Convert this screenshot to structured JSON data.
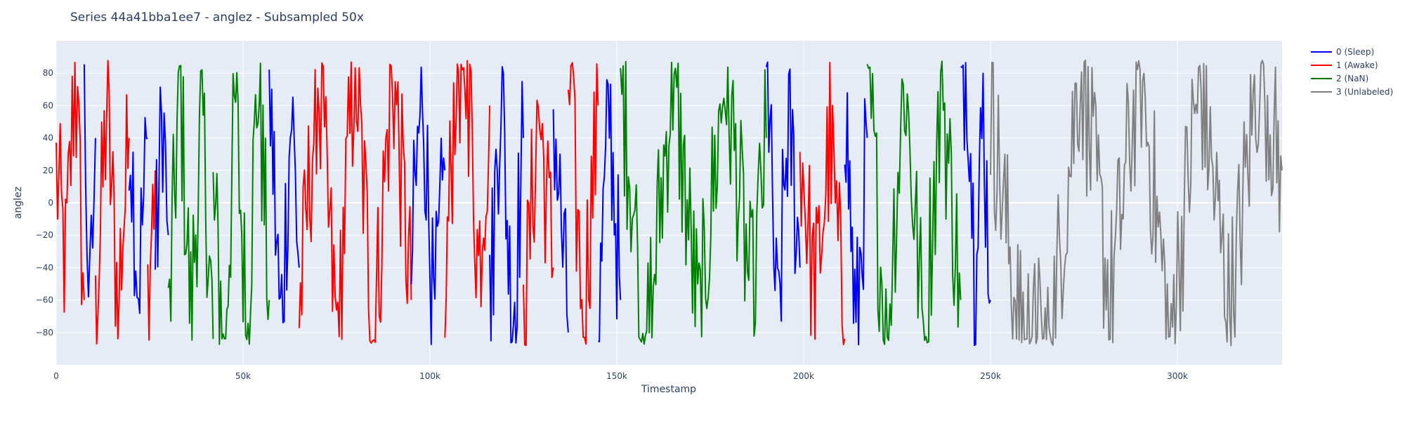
{
  "chart_data": {
    "type": "line",
    "title": "Series 44a41bba1ee7 - anglez - Subsampled 50x",
    "xlabel": "Timestamp",
    "ylabel": "anglez",
    "xlim": [
      0,
      328000
    ],
    "ylim": [
      -100,
      100
    ],
    "x_ticks": [
      0,
      50000,
      100000,
      150000,
      200000,
      250000,
      300000
    ],
    "x_tick_labels": [
      "0",
      "50k",
      "100k",
      "150k",
      "200k",
      "250k",
      "300k"
    ],
    "y_ticks": [
      -80,
      -60,
      -40,
      -20,
      0,
      20,
      40,
      60,
      80
    ],
    "y_tick_labels": [
      "−80",
      "−60",
      "−40",
      "−20",
      "0",
      "20",
      "40",
      "60",
      "80"
    ],
    "grid": true,
    "legend_position": "top-right",
    "plot_bg_color": "#e5ecf6",
    "legend": [
      {
        "name": "0 (Sleep)",
        "color": "#0000ff"
      },
      {
        "name": "1 (Awake)",
        "color": "#ff0000"
      },
      {
        "name": "2 (NaN)",
        "color": "#008000"
      },
      {
        "name": "3 (Unlabeled)",
        "color": "#808080"
      }
    ],
    "segments": [
      {
        "class": 1,
        "x": [
          0,
          2500,
          5000,
          7500
        ],
        "y": [
          20,
          -40,
          80,
          -60
        ]
      },
      {
        "class": 0,
        "x": [
          7500,
          9000,
          10500
        ],
        "y": [
          60,
          -78,
          40
        ]
      },
      {
        "class": 1,
        "x": [
          10500,
          13500,
          16500,
          19500
        ],
        "y": [
          -80,
          60,
          -60,
          40
        ]
      },
      {
        "class": 0,
        "x": [
          19500,
          22000,
          24500
        ],
        "y": [
          60,
          -50,
          40
        ]
      },
      {
        "class": 1,
        "x": [
          24500,
          26500
        ],
        "y": [
          -60,
          20
        ]
      },
      {
        "class": 0,
        "x": [
          26500,
          28500,
          30000
        ],
        "y": [
          -40,
          60,
          -20
        ]
      },
      {
        "class": 2,
        "x": [
          30000,
          33000,
          36000,
          39000,
          42000
        ],
        "y": [
          -86,
          80,
          -70,
          60,
          -84
        ]
      },
      {
        "class": 2,
        "x": [
          42000,
          45000,
          48000,
          51000,
          54000,
          57000
        ],
        "y": [
          0,
          -84,
          60,
          -80,
          80,
          -60
        ]
      },
      {
        "class": 0,
        "x": [
          57000,
          60000,
          63000,
          65000
        ],
        "y": [
          80,
          -80,
          60,
          -40
        ]
      },
      {
        "class": 1,
        "x": [
          65000,
          70000,
          75000,
          80000,
          85000,
          90000,
          95000
        ],
        "y": [
          -70,
          80,
          -80,
          88,
          -84,
          86,
          -60
        ]
      },
      {
        "class": 0,
        "x": [
          95000,
          98000,
          101000,
          104000
        ],
        "y": [
          -40,
          80,
          -80,
          20
        ]
      },
      {
        "class": 1,
        "x": [
          104000,
          107000,
          110000,
          113000,
          116000
        ],
        "y": [
          -60,
          88,
          82,
          -40,
          60
        ]
      },
      {
        "class": 0,
        "x": [
          116000,
          119000,
          122000,
          125000
        ],
        "y": [
          -70,
          80,
          -80,
          40
        ]
      },
      {
        "class": 1,
        "x": [
          125000,
          129000,
          133000
        ],
        "y": [
          -84,
          60,
          -40
        ]
      },
      {
        "class": 0,
        "x": [
          133000,
          137000
        ],
        "y": [
          60,
          -80
        ]
      },
      {
        "class": 1,
        "x": [
          137000,
          141000,
          145000
        ],
        "y": [
          82,
          -70,
          60
        ]
      },
      {
        "class": 0,
        "x": [
          145000,
          148000,
          151000
        ],
        "y": [
          -80,
          60,
          -60
        ]
      },
      {
        "class": 2,
        "x": [
          151000,
          158000,
          165000,
          172000,
          179000,
          186000,
          190000
        ],
        "y": [
          80,
          -88,
          80,
          -76,
          82,
          -60,
          40
        ]
      },
      {
        "class": 0,
        "x": [
          190000,
          193000,
          196000,
          199000
        ],
        "y": [
          86,
          -84,
          60,
          -40
        ]
      },
      {
        "class": 1,
        "x": [
          199000,
          203000,
          207000,
          211000
        ],
        "y": [
          40,
          -60,
          40,
          -84
        ]
      },
      {
        "class": 0,
        "x": [
          211000,
          214000,
          217000
        ],
        "y": [
          70,
          -84,
          40
        ]
      },
      {
        "class": 2,
        "x": [
          217000,
          222000,
          227000,
          232000,
          237000,
          242000
        ],
        "y": [
          86,
          -86,
          80,
          -80,
          70,
          -60
        ]
      },
      {
        "class": 0,
        "x": [
          242000,
          244000,
          246000,
          248000,
          250000
        ],
        "y": [
          88,
          80,
          -60,
          60,
          -60
        ]
      },
      {
        "class": 3,
        "x": [
          250000,
          258000,
          266000,
          274000,
          282000,
          290000,
          298000,
          306000,
          314000,
          322000,
          328000
        ],
        "y": [
          60,
          -82,
          -86,
          86,
          -60,
          86,
          -84,
          80,
          -70,
          88,
          20
        ]
      }
    ]
  }
}
